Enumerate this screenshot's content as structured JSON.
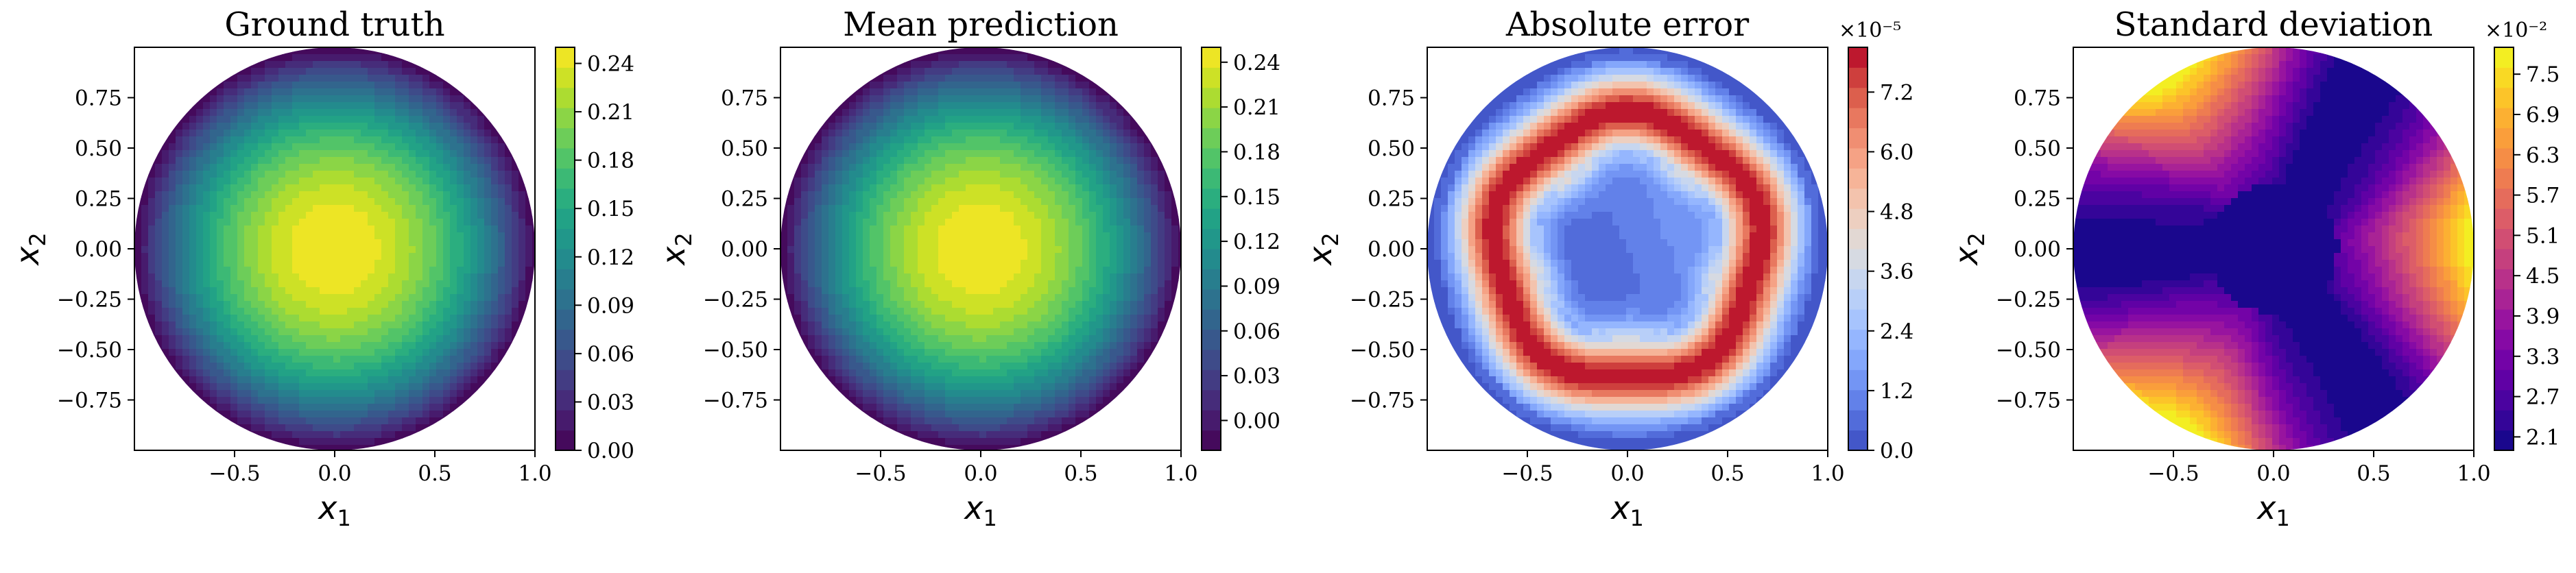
{
  "chart_data": [
    {
      "type": "contour",
      "title": "Ground truth",
      "xlabel": "x1",
      "ylabel": "x2",
      "xlim": [
        -1.0,
        1.0
      ],
      "ylim": [
        -1.0,
        1.0
      ],
      "xticks": [
        "−0.5",
        "0.0",
        "0.5",
        "1.0"
      ],
      "yticks": [
        "0.75",
        "0.50",
        "0.25",
        "0.00",
        "−0.25",
        "−0.50",
        "−0.75"
      ],
      "colormap": "viridis",
      "field": "radial_bump",
      "vmin": 0.0,
      "vmax": 0.25,
      "levels": 20,
      "colorbar_ticks": [
        "0.00",
        "0.03",
        "0.06",
        "0.09",
        "0.12",
        "0.15",
        "0.18",
        "0.21",
        "0.24"
      ],
      "colorbar_tick_values": [
        0.0,
        0.03,
        0.06,
        0.09,
        0.12,
        0.15,
        0.18,
        0.21,
        0.24
      ],
      "colorbar_range": [
        0.0,
        0.25
      ],
      "multiplier": ""
    },
    {
      "type": "contour",
      "title": "Mean prediction",
      "xlabel": "x1",
      "ylabel": "x2",
      "xlim": [
        -1.0,
        1.0
      ],
      "ylim": [
        -1.0,
        1.0
      ],
      "xticks": [
        "−0.5",
        "0.0",
        "0.5",
        "1.0"
      ],
      "yticks": [
        "0.75",
        "0.50",
        "0.25",
        "0.00",
        "−0.25",
        "−0.50",
        "−0.75"
      ],
      "colormap": "viridis",
      "field": "radial_bump",
      "vmin": -0.02,
      "vmax": 0.25,
      "levels": 20,
      "colorbar_ticks": [
        "0.00",
        "0.03",
        "0.06",
        "0.09",
        "0.12",
        "0.15",
        "0.18",
        "0.21",
        "0.24"
      ],
      "colorbar_tick_values": [
        0.0,
        0.03,
        0.06,
        0.09,
        0.12,
        0.15,
        0.18,
        0.21,
        0.24
      ],
      "colorbar_range": [
        -0.02,
        0.25
      ],
      "multiplier": ""
    },
    {
      "type": "contour",
      "title": "Absolute error",
      "xlabel": "x1",
      "ylabel": "x2",
      "xlim": [
        -1.0,
        1.0
      ],
      "ylim": [
        -1.0,
        1.0
      ],
      "xticks": [
        "−0.5",
        "0.0",
        "0.5",
        "1.0"
      ],
      "yticks": [
        "0.75",
        "0.50",
        "0.25",
        "0.00",
        "−0.25",
        "−0.50",
        "−0.75"
      ],
      "colormap": "coolwarm",
      "field": "ring",
      "vmin": 0.0,
      "vmax": 8.1,
      "levels": 20,
      "colorbar_ticks": [
        "0.0",
        "1.2",
        "2.4",
        "3.6",
        "4.8",
        "6.0",
        "7.2"
      ],
      "colorbar_tick_values": [
        0.0,
        1.2,
        2.4,
        3.6,
        4.8,
        6.0,
        7.2
      ],
      "colorbar_range": [
        0.0,
        8.1
      ],
      "multiplier": "×10⁻⁵"
    },
    {
      "type": "contour",
      "title": "Standard deviation",
      "xlabel": "x1",
      "ylabel": "x2",
      "xlim": [
        -1.0,
        1.0
      ],
      "ylim": [
        -1.0,
        1.0
      ],
      "xticks": [
        "−0.5",
        "0.0",
        "0.5",
        "1.0"
      ],
      "yticks": [
        "0.75",
        "0.50",
        "0.25",
        "0.00",
        "−0.25",
        "−0.50",
        "−0.75"
      ],
      "colormap": "plasma",
      "field": "angular_lobes",
      "vmin": 1.9,
      "vmax": 7.9,
      "levels": 20,
      "colorbar_ticks": [
        "2.1",
        "2.7",
        "3.3",
        "3.9",
        "4.5",
        "5.1",
        "5.7",
        "6.3",
        "6.9",
        "7.5"
      ],
      "colorbar_tick_values": [
        2.1,
        2.7,
        3.3,
        3.9,
        4.5,
        5.1,
        5.7,
        6.3,
        6.9,
        7.5
      ],
      "colorbar_range": [
        1.9,
        7.9
      ],
      "multiplier": "×10⁻²"
    }
  ]
}
